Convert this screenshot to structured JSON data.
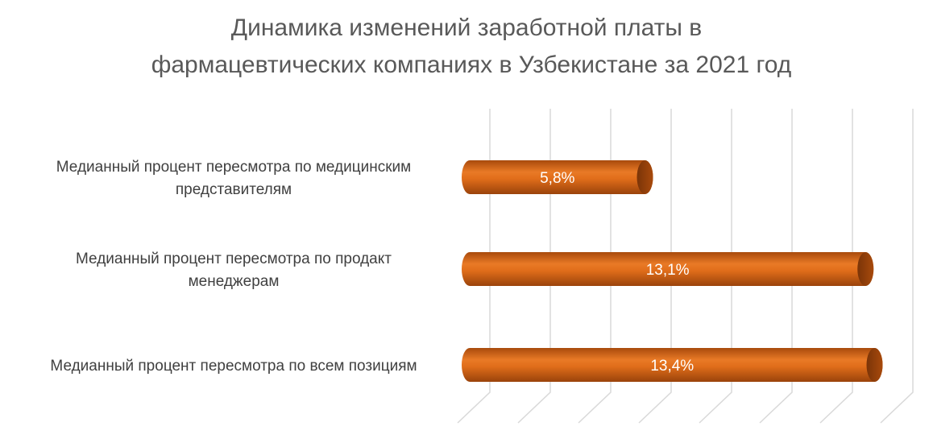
{
  "chart_data": {
    "type": "bar",
    "orientation": "horizontal",
    "style": "3d-cylinder",
    "title": "Динамика изменений заработной платы в фармацевтических компаниях в Узбекистане за 2021 год",
    "title_lines": [
      "Динамика изменений заработной платы в",
      "фармацевтических компаниях в Узбекистане за 2021 год"
    ],
    "categories": [
      [
        "Медианный процент пересмотра по медицинским",
        "представителям"
      ],
      [
        "Медианный процент пересмотра по продакт",
        "менеджерам"
      ],
      [
        "Медианный процент пересмотра по всем позициям"
      ]
    ],
    "values": [
      5.8,
      13.1,
      13.4
    ],
    "data_labels": [
      "5,8%",
      "13,1%",
      "13,4%"
    ],
    "xlim": [
      0,
      14
    ],
    "x_gridline_step": 2,
    "grid": true,
    "legend": "none",
    "bar_color": "#c55a11",
    "xlabel": "",
    "ylabel": ""
  }
}
